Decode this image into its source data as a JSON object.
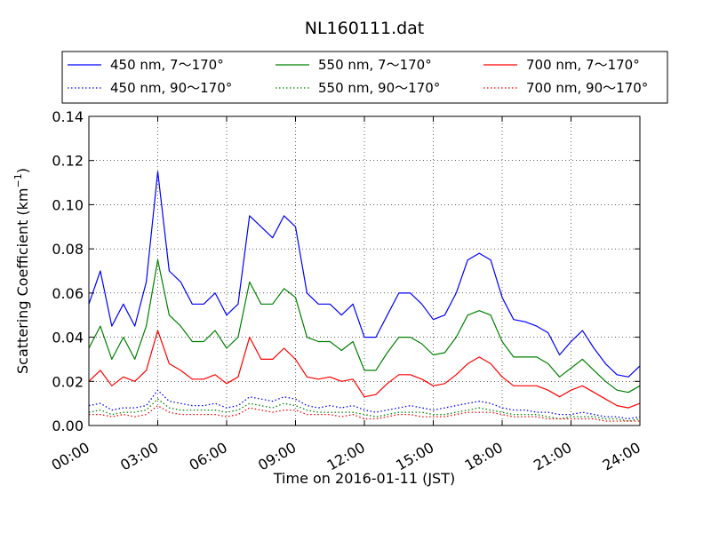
{
  "chart_data": {
    "type": "line",
    "title": "NL160111.dat",
    "xlabel": "Time on 2016-01-11 (JST)",
    "ylabel": "Scattering Coefficient (km",
    "ylabel_sup": "−1",
    "ylabel_close": ")",
    "xlim": [
      0,
      24
    ],
    "ylim": [
      0,
      0.14
    ],
    "grid": true,
    "legend_position": "top",
    "x_ticks": [
      0,
      3,
      6,
      9,
      12,
      15,
      18,
      21,
      24
    ],
    "x_tick_labels": [
      "00:00",
      "03:00",
      "06:00",
      "09:00",
      "12:00",
      "15:00",
      "18:00",
      "21:00",
      "24:00"
    ],
    "y_ticks": [
      0,
      0.02,
      0.04,
      0.06,
      0.08,
      0.1,
      0.12,
      0.14
    ],
    "y_tick_labels": [
      "0.00",
      "0.02",
      "0.04",
      "0.06",
      "0.08",
      "0.10",
      "0.12",
      "0.14"
    ],
    "x": [
      0,
      0.5,
      1,
      1.5,
      2,
      2.5,
      3,
      3.5,
      4,
      4.5,
      5,
      5.5,
      6,
      6.5,
      7,
      7.5,
      8,
      8.5,
      9,
      9.5,
      10,
      10.5,
      11,
      11.5,
      12,
      12.5,
      13,
      13.5,
      14,
      14.5,
      15,
      15.5,
      16,
      16.5,
      17,
      17.5,
      18,
      18.5,
      19,
      19.5,
      20,
      20.5,
      21,
      21.5,
      22,
      22.5,
      23,
      23.5,
      24
    ],
    "series": [
      {
        "name": "450 nm, 7～170°",
        "color": "#0000ff",
        "style": "solid",
        "values": [
          0.055,
          0.07,
          0.045,
          0.055,
          0.045,
          0.065,
          0.115,
          0.07,
          0.065,
          0.055,
          0.055,
          0.06,
          0.05,
          0.055,
          0.095,
          0.09,
          0.085,
          0.095,
          0.09,
          0.06,
          0.055,
          0.055,
          0.05,
          0.055,
          0.04,
          0.04,
          0.05,
          0.06,
          0.06,
          0.055,
          0.048,
          0.05,
          0.06,
          0.075,
          0.078,
          0.075,
          0.058,
          0.048,
          0.047,
          0.045,
          0.042,
          0.032,
          0.038,
          0.043,
          0.035,
          0.028,
          0.023,
          0.022,
          0.027
        ]
      },
      {
        "name": "450 nm, 90～170°",
        "color": "#0000ff",
        "style": "dotted",
        "values": [
          0.009,
          0.01,
          0.007,
          0.008,
          0.008,
          0.009,
          0.016,
          0.011,
          0.01,
          0.009,
          0.009,
          0.01,
          0.008,
          0.009,
          0.013,
          0.012,
          0.011,
          0.013,
          0.012,
          0.009,
          0.008,
          0.009,
          0.008,
          0.009,
          0.007,
          0.006,
          0.007,
          0.008,
          0.009,
          0.008,
          0.007,
          0.008,
          0.009,
          0.01,
          0.011,
          0.01,
          0.008,
          0.007,
          0.007,
          0.006,
          0.006,
          0.005,
          0.005,
          0.006,
          0.005,
          0.004,
          0.004,
          0.003,
          0.004
        ]
      },
      {
        "name": "550 nm, 7～170°",
        "color": "#008000",
        "style": "solid",
        "values": [
          0.035,
          0.045,
          0.03,
          0.04,
          0.03,
          0.045,
          0.075,
          0.05,
          0.045,
          0.038,
          0.038,
          0.043,
          0.035,
          0.04,
          0.065,
          0.055,
          0.055,
          0.062,
          0.058,
          0.04,
          0.038,
          0.038,
          0.034,
          0.038,
          0.025,
          0.025,
          0.033,
          0.04,
          0.04,
          0.037,
          0.032,
          0.033,
          0.04,
          0.05,
          0.052,
          0.05,
          0.038,
          0.031,
          0.031,
          0.031,
          0.028,
          0.022,
          0.026,
          0.03,
          0.025,
          0.02,
          0.016,
          0.015,
          0.018
        ]
      },
      {
        "name": "550 nm, 90～170°",
        "color": "#008000",
        "style": "dotted",
        "values": [
          0.006,
          0.007,
          0.005,
          0.006,
          0.006,
          0.007,
          0.012,
          0.008,
          0.007,
          0.007,
          0.007,
          0.007,
          0.006,
          0.007,
          0.01,
          0.009,
          0.008,
          0.01,
          0.009,
          0.007,
          0.006,
          0.006,
          0.006,
          0.006,
          0.005,
          0.004,
          0.005,
          0.006,
          0.006,
          0.006,
          0.005,
          0.005,
          0.006,
          0.007,
          0.008,
          0.007,
          0.006,
          0.005,
          0.005,
          0.005,
          0.004,
          0.003,
          0.004,
          0.004,
          0.004,
          0.003,
          0.003,
          0.002,
          0.003
        ]
      },
      {
        "name": "700 nm, 7～170°",
        "color": "#ff0000",
        "style": "solid",
        "values": [
          0.02,
          0.025,
          0.018,
          0.022,
          0.02,
          0.025,
          0.043,
          0.028,
          0.025,
          0.021,
          0.021,
          0.023,
          0.019,
          0.022,
          0.04,
          0.03,
          0.03,
          0.035,
          0.03,
          0.022,
          0.021,
          0.022,
          0.02,
          0.021,
          0.013,
          0.014,
          0.019,
          0.023,
          0.023,
          0.021,
          0.018,
          0.019,
          0.023,
          0.028,
          0.031,
          0.028,
          0.022,
          0.018,
          0.018,
          0.018,
          0.016,
          0.013,
          0.016,
          0.018,
          0.015,
          0.012,
          0.009,
          0.008,
          0.01
        ]
      },
      {
        "name": "700 nm, 90～170°",
        "color": "#ff0000",
        "style": "dotted",
        "values": [
          0.005,
          0.005,
          0.004,
          0.005,
          0.004,
          0.005,
          0.009,
          0.006,
          0.005,
          0.005,
          0.005,
          0.005,
          0.004,
          0.005,
          0.008,
          0.007,
          0.006,
          0.007,
          0.007,
          0.005,
          0.005,
          0.005,
          0.004,
          0.005,
          0.003,
          0.003,
          0.004,
          0.005,
          0.005,
          0.004,
          0.004,
          0.004,
          0.005,
          0.006,
          0.006,
          0.006,
          0.005,
          0.004,
          0.004,
          0.004,
          0.003,
          0.003,
          0.003,
          0.003,
          0.003,
          0.002,
          0.002,
          0.002,
          0.002
        ]
      }
    ]
  }
}
